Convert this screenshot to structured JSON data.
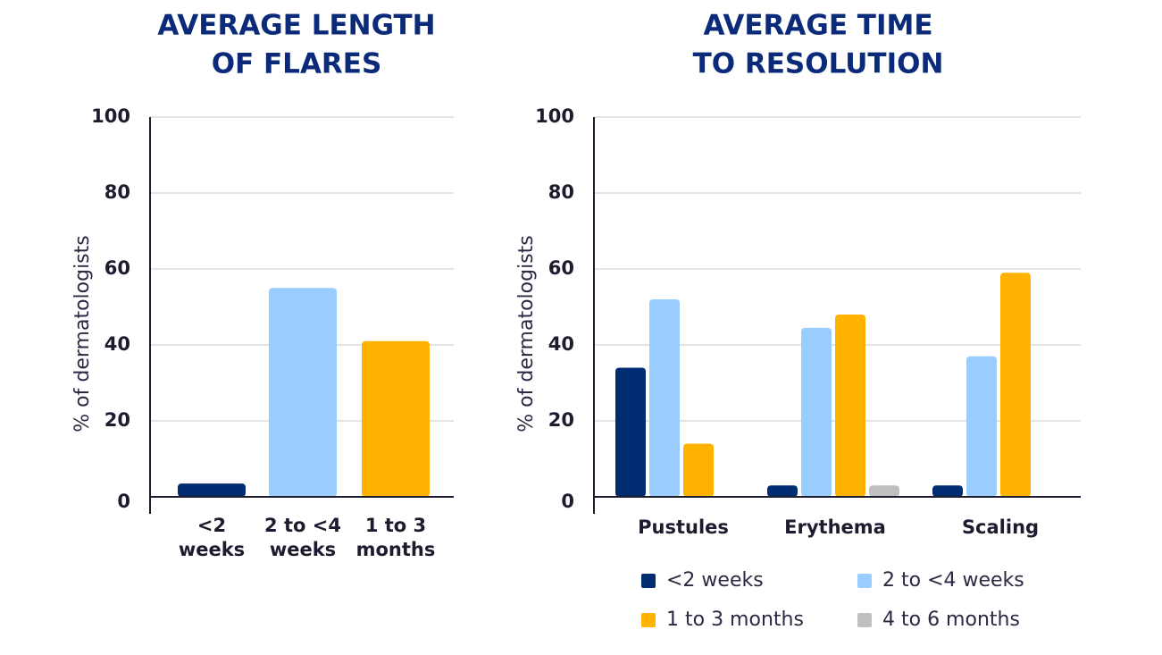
{
  "chart_data": [
    {
      "type": "bar",
      "title": [
        "AVERAGE LENGTH",
        "OF FLARES"
      ],
      "y_label": "% of dermatologists",
      "categories": [
        "<2 weeks",
        "2 to <4 weeks",
        "1 to 3 months"
      ],
      "values": [
        3.5,
        55,
        41
      ],
      "colors": [
        "#002d72",
        "#99ccff",
        "#ffb300"
      ],
      "ylim": [
        0,
        100
      ],
      "yticks": [
        0,
        20,
        40,
        60,
        80,
        100
      ],
      "grid": true
    },
    {
      "type": "grouped_bar",
      "title": [
        "AVERAGE TIME",
        "TO RESOLUTION"
      ],
      "y_label": "% of dermatologists",
      "categories": [
        "Pustules",
        "Erythema",
        "Scaling"
      ],
      "series": [
        {
          "name": "<2 weeks",
          "color": "#002d72",
          "values": [
            34,
            3,
            3
          ]
        },
        {
          "name": "2 to <4 weeks",
          "color": "#99ccff",
          "values": [
            52,
            44.5,
            37
          ]
        },
        {
          "name": "1 to 3 months",
          "color": "#ffb300",
          "values": [
            14,
            48,
            59
          ]
        },
        {
          "name": "4 to 6 months",
          "color": "#bfbfbf",
          "values": [
            0,
            3,
            0
          ]
        }
      ],
      "ylim": [
        0,
        100
      ],
      "yticks": [
        0,
        20,
        40,
        60,
        80,
        100
      ],
      "grid": true
    }
  ]
}
